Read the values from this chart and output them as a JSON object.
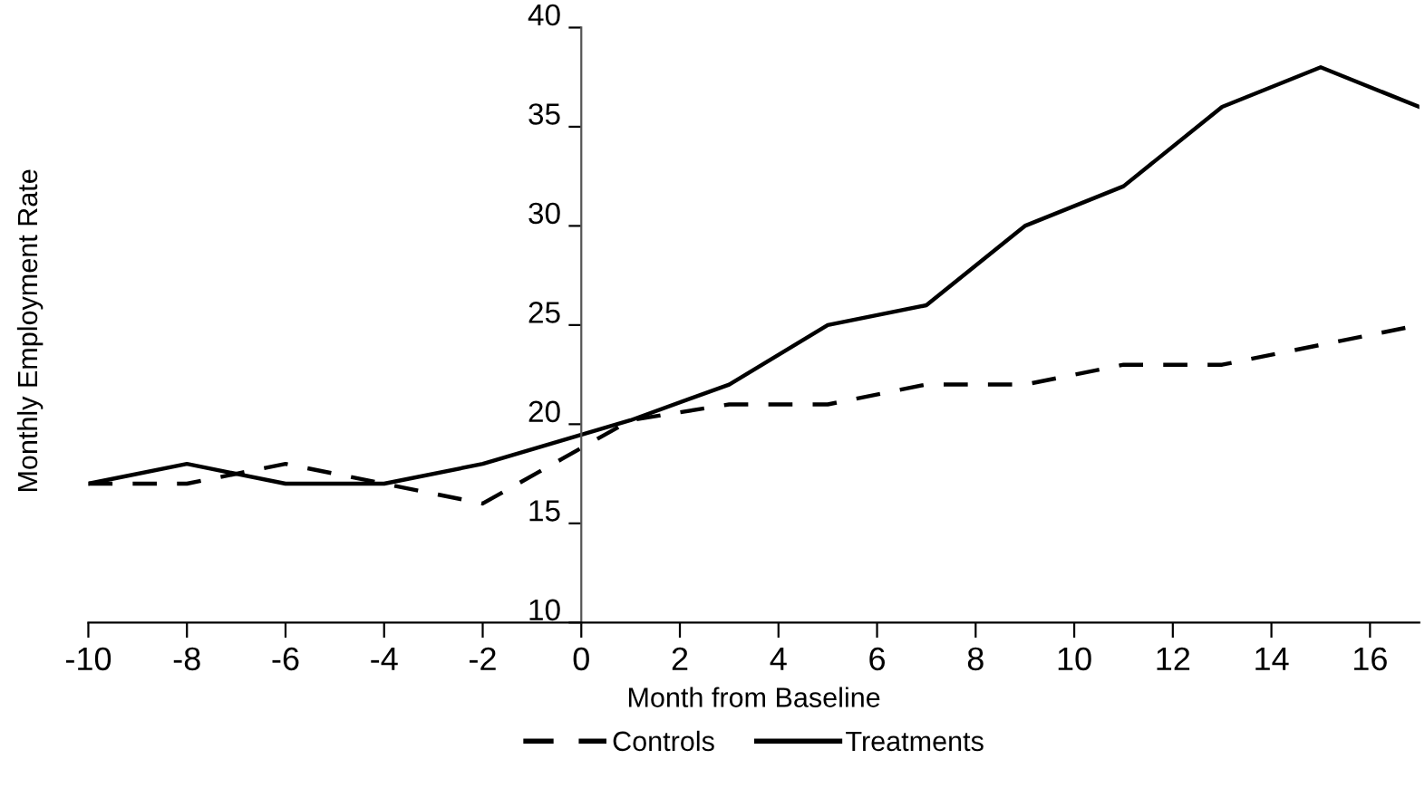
{
  "chart_data": {
    "type": "line",
    "xlabel": "Month from Baseline",
    "ylabel": "Monthly Employment Rate",
    "xlim": [
      -10,
      17
    ],
    "xticks": [
      -10,
      -8,
      -6,
      -4,
      -2,
      0,
      2,
      4,
      6,
      8,
      10,
      12,
      14,
      16
    ],
    "ylim": [
      10,
      40
    ],
    "yticks": [
      10,
      15,
      20,
      25,
      30,
      35,
      40
    ],
    "grid": false,
    "legend": "bottom",
    "marker": "none",
    "series": [
      {
        "name": "Controls",
        "color": "#000000",
        "line_style": "dashed",
        "x": [
          -10,
          -8,
          -6,
          -4,
          -2,
          1,
          3,
          5,
          7,
          9,
          11,
          13,
          15,
          17
        ],
        "values": [
          17,
          17,
          18,
          17,
          16,
          20.2,
          21,
          21,
          22,
          22,
          23,
          23,
          24,
          25
        ]
      },
      {
        "name": "Treatments",
        "color": "#000000",
        "line_style": "solid",
        "x": [
          -10,
          -8,
          -6,
          -4,
          -2,
          1,
          3,
          5,
          7,
          9,
          11,
          13,
          15,
          17
        ],
        "values": [
          17,
          18,
          17,
          17,
          18,
          20.2,
          22,
          25,
          26,
          30,
          32,
          36,
          38,
          36
        ]
      }
    ]
  }
}
